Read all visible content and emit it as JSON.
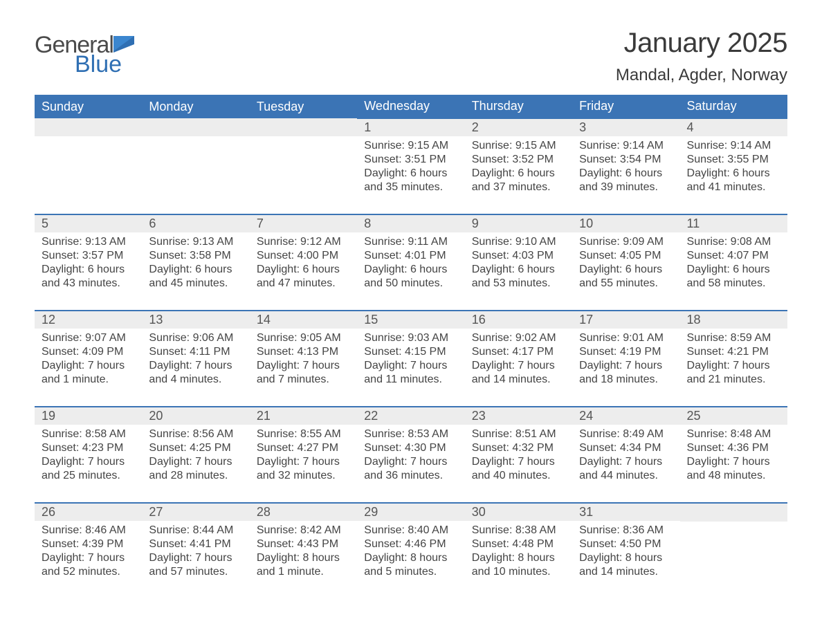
{
  "brand": {
    "word1": "General",
    "word2": "Blue"
  },
  "title": "January 2025",
  "location": "Mandal, Agder, Norway",
  "colors": {
    "header_bg": "#3b74b5",
    "header_text": "#ffffff",
    "daynum_bg": "#ededed",
    "row_divider": "#3b74b5",
    "body_text": "#444444",
    "logo_blue": "#2f6fb3",
    "page_bg": "#ffffff"
  },
  "layout": {
    "columns": 7,
    "rows": 5,
    "font_family": "Arial"
  },
  "weekdays": [
    "Sunday",
    "Monday",
    "Tuesday",
    "Wednesday",
    "Thursday",
    "Friday",
    "Saturday"
  ],
  "weeks": [
    [
      {
        "n": "",
        "sunrise": "",
        "sunset": "",
        "daylight": ""
      },
      {
        "n": "",
        "sunrise": "",
        "sunset": "",
        "daylight": ""
      },
      {
        "n": "",
        "sunrise": "",
        "sunset": "",
        "daylight": ""
      },
      {
        "n": "1",
        "sunrise": "Sunrise: 9:15 AM",
        "sunset": "Sunset: 3:51 PM",
        "daylight": "Daylight: 6 hours and 35 minutes."
      },
      {
        "n": "2",
        "sunrise": "Sunrise: 9:15 AM",
        "sunset": "Sunset: 3:52 PM",
        "daylight": "Daylight: 6 hours and 37 minutes."
      },
      {
        "n": "3",
        "sunrise": "Sunrise: 9:14 AM",
        "sunset": "Sunset: 3:54 PM",
        "daylight": "Daylight: 6 hours and 39 minutes."
      },
      {
        "n": "4",
        "sunrise": "Sunrise: 9:14 AM",
        "sunset": "Sunset: 3:55 PM",
        "daylight": "Daylight: 6 hours and 41 minutes."
      }
    ],
    [
      {
        "n": "5",
        "sunrise": "Sunrise: 9:13 AM",
        "sunset": "Sunset: 3:57 PM",
        "daylight": "Daylight: 6 hours and 43 minutes."
      },
      {
        "n": "6",
        "sunrise": "Sunrise: 9:13 AM",
        "sunset": "Sunset: 3:58 PM",
        "daylight": "Daylight: 6 hours and 45 minutes."
      },
      {
        "n": "7",
        "sunrise": "Sunrise: 9:12 AM",
        "sunset": "Sunset: 4:00 PM",
        "daylight": "Daylight: 6 hours and 47 minutes."
      },
      {
        "n": "8",
        "sunrise": "Sunrise: 9:11 AM",
        "sunset": "Sunset: 4:01 PM",
        "daylight": "Daylight: 6 hours and 50 minutes."
      },
      {
        "n": "9",
        "sunrise": "Sunrise: 9:10 AM",
        "sunset": "Sunset: 4:03 PM",
        "daylight": "Daylight: 6 hours and 53 minutes."
      },
      {
        "n": "10",
        "sunrise": "Sunrise: 9:09 AM",
        "sunset": "Sunset: 4:05 PM",
        "daylight": "Daylight: 6 hours and 55 minutes."
      },
      {
        "n": "11",
        "sunrise": "Sunrise: 9:08 AM",
        "sunset": "Sunset: 4:07 PM",
        "daylight": "Daylight: 6 hours and 58 minutes."
      }
    ],
    [
      {
        "n": "12",
        "sunrise": "Sunrise: 9:07 AM",
        "sunset": "Sunset: 4:09 PM",
        "daylight": "Daylight: 7 hours and 1 minute."
      },
      {
        "n": "13",
        "sunrise": "Sunrise: 9:06 AM",
        "sunset": "Sunset: 4:11 PM",
        "daylight": "Daylight: 7 hours and 4 minutes."
      },
      {
        "n": "14",
        "sunrise": "Sunrise: 9:05 AM",
        "sunset": "Sunset: 4:13 PM",
        "daylight": "Daylight: 7 hours and 7 minutes."
      },
      {
        "n": "15",
        "sunrise": "Sunrise: 9:03 AM",
        "sunset": "Sunset: 4:15 PM",
        "daylight": "Daylight: 7 hours and 11 minutes."
      },
      {
        "n": "16",
        "sunrise": "Sunrise: 9:02 AM",
        "sunset": "Sunset: 4:17 PM",
        "daylight": "Daylight: 7 hours and 14 minutes."
      },
      {
        "n": "17",
        "sunrise": "Sunrise: 9:01 AM",
        "sunset": "Sunset: 4:19 PM",
        "daylight": "Daylight: 7 hours and 18 minutes."
      },
      {
        "n": "18",
        "sunrise": "Sunrise: 8:59 AM",
        "sunset": "Sunset: 4:21 PM",
        "daylight": "Daylight: 7 hours and 21 minutes."
      }
    ],
    [
      {
        "n": "19",
        "sunrise": "Sunrise: 8:58 AM",
        "sunset": "Sunset: 4:23 PM",
        "daylight": "Daylight: 7 hours and 25 minutes."
      },
      {
        "n": "20",
        "sunrise": "Sunrise: 8:56 AM",
        "sunset": "Sunset: 4:25 PM",
        "daylight": "Daylight: 7 hours and 28 minutes."
      },
      {
        "n": "21",
        "sunrise": "Sunrise: 8:55 AM",
        "sunset": "Sunset: 4:27 PM",
        "daylight": "Daylight: 7 hours and 32 minutes."
      },
      {
        "n": "22",
        "sunrise": "Sunrise: 8:53 AM",
        "sunset": "Sunset: 4:30 PM",
        "daylight": "Daylight: 7 hours and 36 minutes."
      },
      {
        "n": "23",
        "sunrise": "Sunrise: 8:51 AM",
        "sunset": "Sunset: 4:32 PM",
        "daylight": "Daylight: 7 hours and 40 minutes."
      },
      {
        "n": "24",
        "sunrise": "Sunrise: 8:49 AM",
        "sunset": "Sunset: 4:34 PM",
        "daylight": "Daylight: 7 hours and 44 minutes."
      },
      {
        "n": "25",
        "sunrise": "Sunrise: 8:48 AM",
        "sunset": "Sunset: 4:36 PM",
        "daylight": "Daylight: 7 hours and 48 minutes."
      }
    ],
    [
      {
        "n": "26",
        "sunrise": "Sunrise: 8:46 AM",
        "sunset": "Sunset: 4:39 PM",
        "daylight": "Daylight: 7 hours and 52 minutes."
      },
      {
        "n": "27",
        "sunrise": "Sunrise: 8:44 AM",
        "sunset": "Sunset: 4:41 PM",
        "daylight": "Daylight: 7 hours and 57 minutes."
      },
      {
        "n": "28",
        "sunrise": "Sunrise: 8:42 AM",
        "sunset": "Sunset: 4:43 PM",
        "daylight": "Daylight: 8 hours and 1 minute."
      },
      {
        "n": "29",
        "sunrise": "Sunrise: 8:40 AM",
        "sunset": "Sunset: 4:46 PM",
        "daylight": "Daylight: 8 hours and 5 minutes."
      },
      {
        "n": "30",
        "sunrise": "Sunrise: 8:38 AM",
        "sunset": "Sunset: 4:48 PM",
        "daylight": "Daylight: 8 hours and 10 minutes."
      },
      {
        "n": "31",
        "sunrise": "Sunrise: 8:36 AM",
        "sunset": "Sunset: 4:50 PM",
        "daylight": "Daylight: 8 hours and 14 minutes."
      },
      {
        "n": "",
        "sunrise": "",
        "sunset": "",
        "daylight": ""
      }
    ]
  ]
}
